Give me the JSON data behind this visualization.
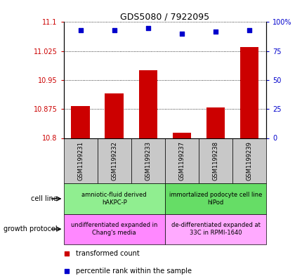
{
  "title": "GDS5080 / 7922095",
  "samples": [
    "GSM1199231",
    "GSM1199232",
    "GSM1199233",
    "GSM1199237",
    "GSM1199238",
    "GSM1199239"
  ],
  "bar_values": [
    10.883,
    10.915,
    10.975,
    10.814,
    10.879,
    11.035
  ],
  "percentile_values": [
    93,
    93,
    95,
    90,
    92,
    93
  ],
  "ylim_left": [
    10.8,
    11.1
  ],
  "ylim_right": [
    0,
    100
  ],
  "yticks_left": [
    10.8,
    10.875,
    10.95,
    11.025,
    11.1
  ],
  "ytick_labels_left": [
    "10.8",
    "10.875",
    "10.95",
    "11.025",
    "11.1"
  ],
  "yticks_right": [
    0,
    25,
    50,
    75,
    100
  ],
  "ytick_labels_right": [
    "0",
    "25",
    "50",
    "75",
    "100%"
  ],
  "bar_color": "#cc0000",
  "percentile_color": "#0000cc",
  "bar_bottom": 10.8,
  "cell_line_groups": [
    {
      "label": "amniotic-fluid derived\nhAKPC-P",
      "start": 0,
      "end": 3,
      "color": "#90ee90"
    },
    {
      "label": "immortalized podocyte cell line\nhIPod",
      "start": 3,
      "end": 6,
      "color": "#66dd66"
    }
  ],
  "growth_protocol_groups": [
    {
      "label": "undifferentiated expanded in\nChang's media",
      "start": 0,
      "end": 3,
      "color": "#ff88ff"
    },
    {
      "label": "de-differentiated expanded at\n33C in RPMI-1640",
      "start": 3,
      "end": 6,
      "color": "#ffaaff"
    }
  ],
  "cell_line_left_label": "cell line",
  "growth_protocol_left_label": "growth protocol",
  "legend_items": [
    {
      "color": "#cc0000",
      "label": "transformed count"
    },
    {
      "color": "#0000cc",
      "label": "percentile rank within the sample"
    }
  ],
  "tick_color_left": "#cc0000",
  "tick_color_right": "#0000cc",
  "grid_color": "#000000",
  "sample_box_color": "#c8c8c8"
}
